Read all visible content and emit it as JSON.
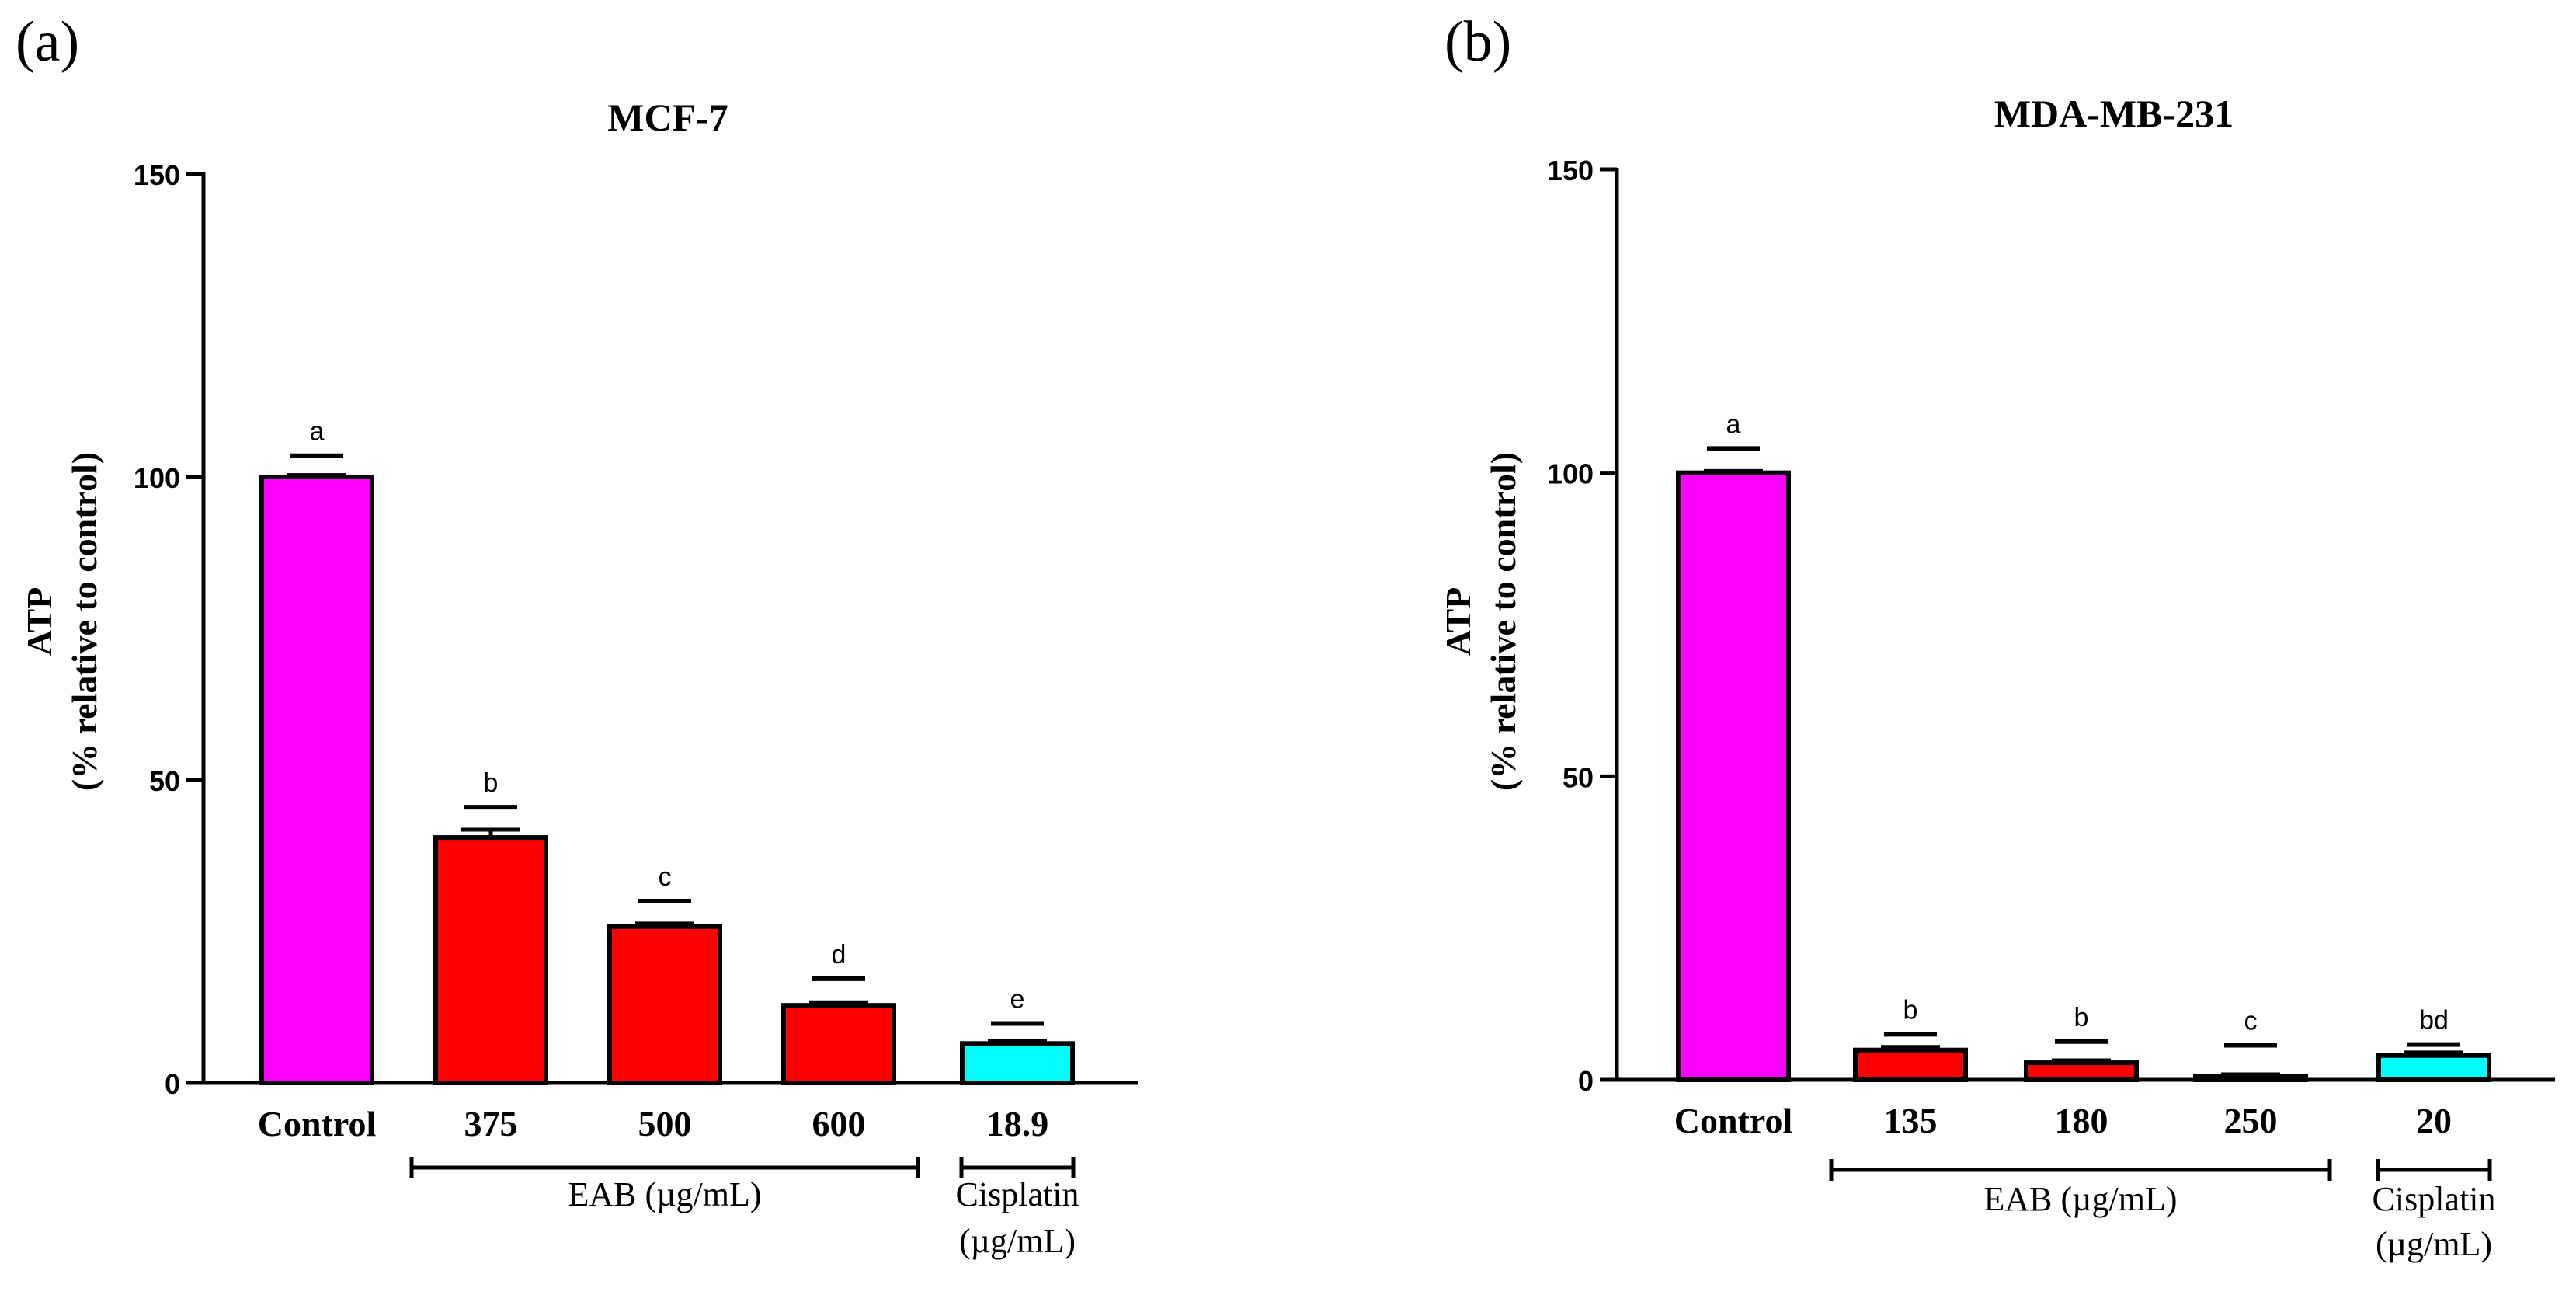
{
  "figure": {
    "panel_labels": [
      "(a)",
      "(b)"
    ]
  },
  "chart_data": [
    {
      "type": "bar",
      "panel_label": "(a)",
      "title": "MCF-7",
      "ylabel_line1": "ATP",
      "ylabel_line2": "(% relative to control)",
      "xlabel": "",
      "ylim": [
        0,
        150
      ],
      "yticks": [
        0,
        50,
        100,
        150
      ],
      "categories": [
        "Control",
        "375",
        "500",
        "600",
        "18.9"
      ],
      "values": [
        100,
        40.5,
        25.8,
        12.8,
        6.5
      ],
      "errors": [
        0.3,
        1.3,
        0.5,
        0.5,
        0.4
      ],
      "significance_letters": [
        "a",
        "b",
        "c",
        "d",
        "e"
      ],
      "letter_positions": [
        103.5,
        45.5,
        30,
        17.2,
        9.8
      ],
      "colors": [
        "#ff00ff",
        "#ff0000",
        "#ff0000",
        "#ff0000",
        "#00ffff"
      ],
      "groups": [
        {
          "label": "EAB (µg/mL)",
          "from": 1,
          "to": 3
        },
        {
          "label_line1": "Cisplatin",
          "label_line2": "(µg/mL)",
          "from": 4,
          "to": 4
        }
      ]
    },
    {
      "type": "bar",
      "panel_label": "(b)",
      "title": "MDA-MB-231",
      "ylabel_line1": "ATP",
      "ylabel_line2": "(% relative to control)",
      "xlabel": "",
      "ylim": [
        0,
        150
      ],
      "yticks": [
        0,
        50,
        100,
        150
      ],
      "categories": [
        "Control",
        "135",
        "180",
        "250",
        "20"
      ],
      "values": [
        100,
        4.9,
        2.8,
        0.6,
        4.0
      ],
      "errors": [
        0.3,
        0.5,
        0.4,
        0.3,
        0.5
      ],
      "significance_letters": [
        "a",
        "b",
        "b",
        "c",
        "bd"
      ],
      "letter_positions": [
        104,
        7.5,
        6.3,
        5.7,
        5.8
      ],
      "colors": [
        "#ff00ff",
        "#ff0000",
        "#ff0000",
        "#ff0000",
        "#00ffff"
      ],
      "groups": [
        {
          "label": "EAB (µg/mL)",
          "from": 1,
          "to": 3
        },
        {
          "label_line1": "Cisplatin",
          "label_line2": "(µg/mL)",
          "from": 4,
          "to": 4
        }
      ]
    }
  ]
}
